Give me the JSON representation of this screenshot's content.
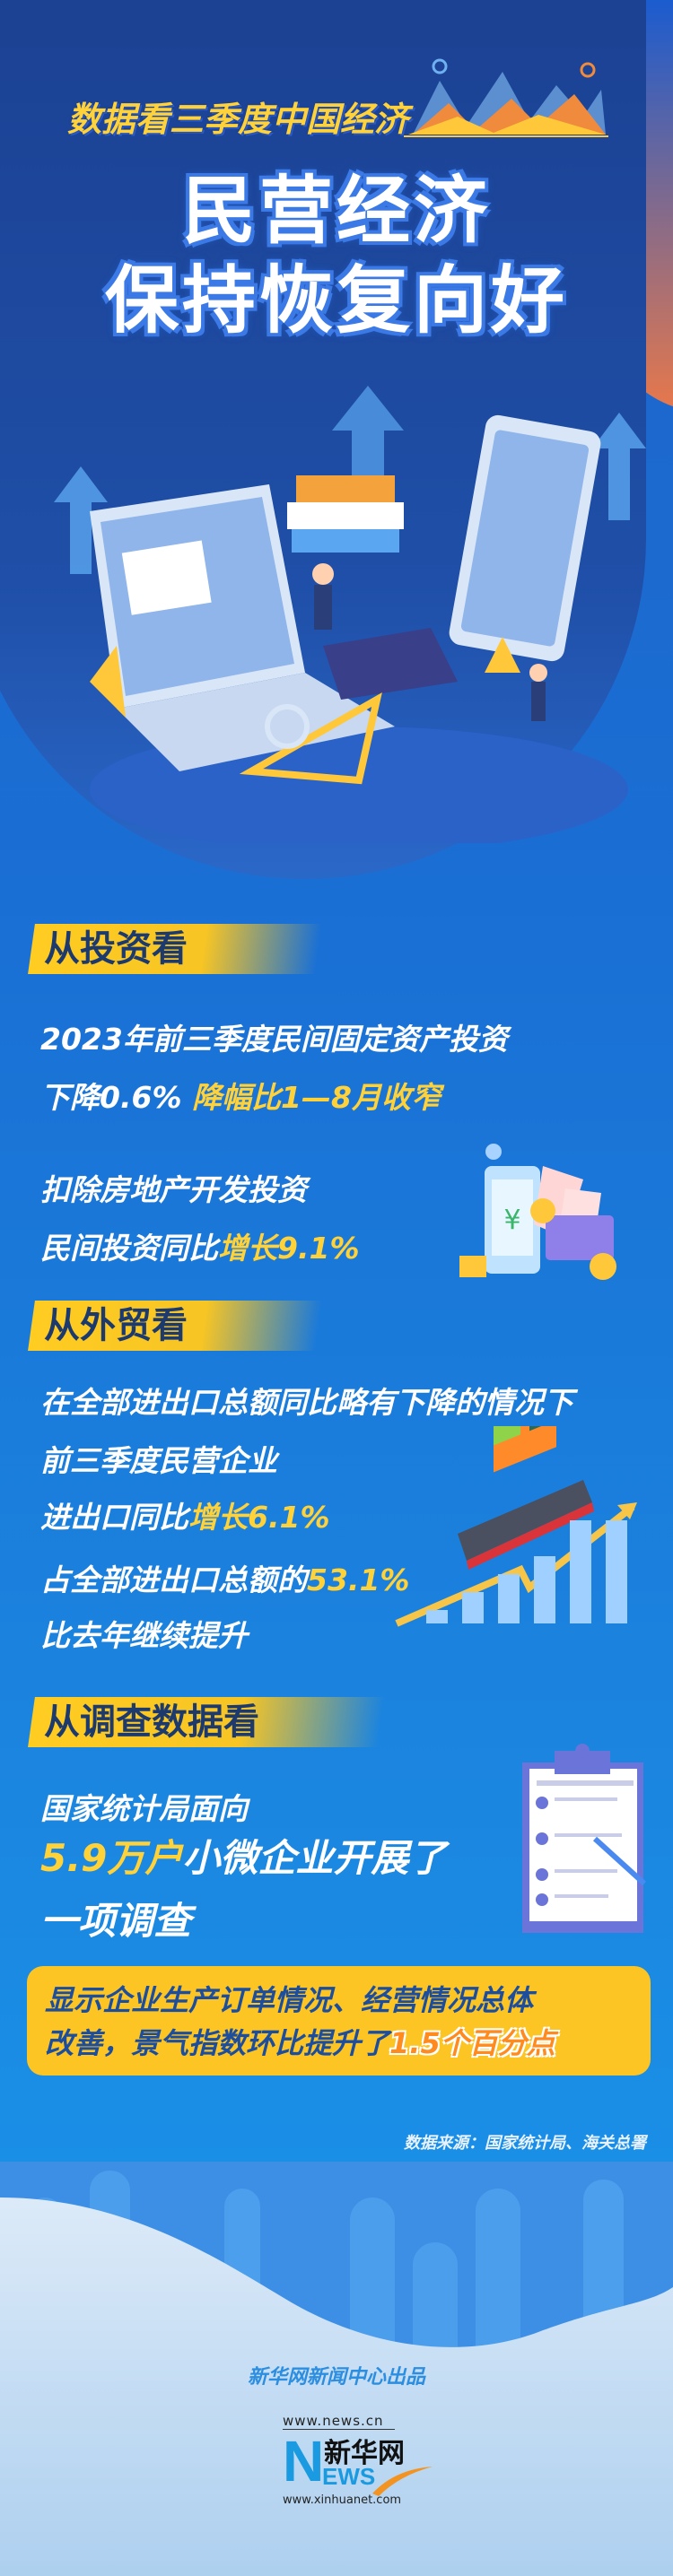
{
  "header": {
    "subtitle": "数据看三季度中国经济",
    "title_line1": "民营经济",
    "title_line2": "保持恢复向好"
  },
  "sections": [
    {
      "heading": "从投资看",
      "lines": [
        {
          "text": "2023年前三季度民间固定资产投资"
        },
        {
          "text": "下降0.6%",
          "highlight": "降幅比1—8月收窄"
        },
        {
          "text": "扣除房地产开发投资"
        },
        {
          "text": "民间投资同比",
          "highlight": "增长9.1%"
        }
      ]
    },
    {
      "heading": "从外贸看",
      "lines": [
        {
          "text": "在全部进出口总额同比略有下降的情况下"
        },
        {
          "text": "前三季度民营企业"
        },
        {
          "text": "进出口同比",
          "highlight": "增长6.1%"
        },
        {
          "text": "占全部进出口总额的",
          "highlight": "53.1%"
        },
        {
          "text": "比去年继续提升"
        }
      ]
    },
    {
      "heading": "从调查数据看",
      "lines": [
        {
          "text": "国家统计局面向"
        },
        {
          "highlight": "5.9万户",
          "text": "小微企业开展了"
        },
        {
          "text": "一项调查"
        }
      ]
    }
  ],
  "summary_box": {
    "line1": "显示企业生产订单情况、经营情况总体",
    "line2": "改善，景气指数环比提升了",
    "line2_highlight": "1.5个百分点"
  },
  "source": "数据来源：国家统计局、海关总署",
  "footer": {
    "credit": "新华网新闻中心出品",
    "logo": {
      "top_url": "www.news.cn",
      "name": "新华网",
      "letters": "NEWS",
      "bottom_url": "www.xinhuanet.com"
    }
  },
  "colors": {
    "accent_yellow": "#ffd23a",
    "banner_yellow": "#fcc524",
    "deep_blue": "#1b3f8f",
    "background_blue": "#1a78d8",
    "orange": "#ff8a1e"
  }
}
